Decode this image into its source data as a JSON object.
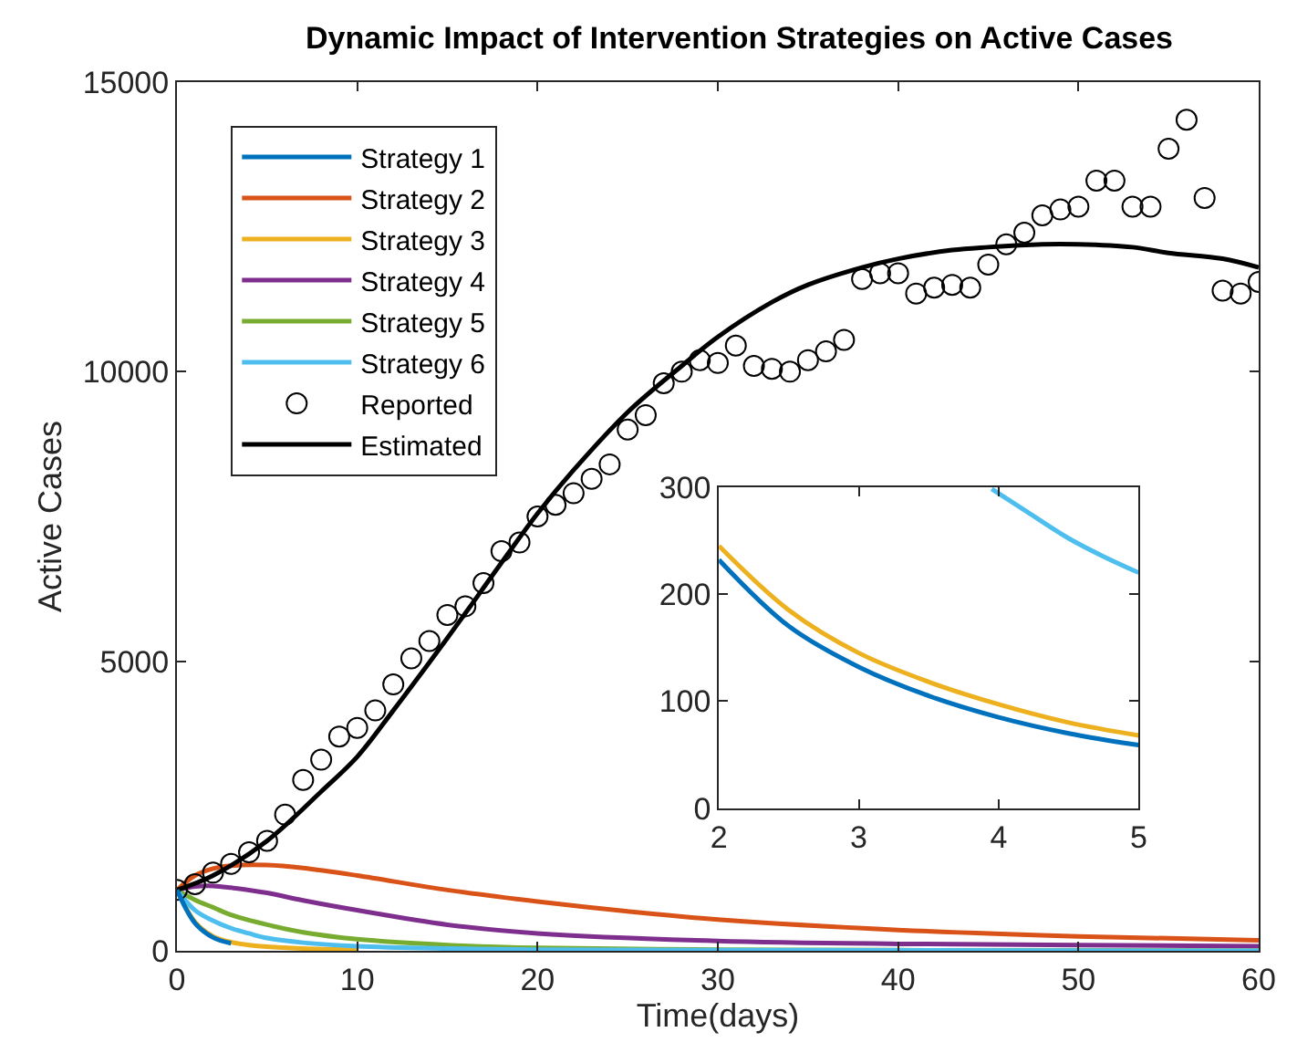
{
  "chart_data": [
    {
      "type": "line",
      "title": "Dynamic Impact of Intervention Strategies on Active Cases",
      "xlabel": "Time(days)",
      "ylabel": "Active Cases",
      "xlim": [
        0,
        60
      ],
      "xticks": [
        0,
        10,
        20,
        30,
        40,
        50,
        60
      ],
      "ylim": [
        0,
        15000
      ],
      "yticks": [
        0,
        5000,
        10000,
        15000
      ],
      "legend": "top left",
      "series": [
        {
          "name": "Strategy 1",
          "color": "#0072bd",
          "x": [
            0,
            1,
            2,
            3
          ],
          "values": [
            1050,
            480,
            230,
            130
          ]
        },
        {
          "name": "Strategy 2",
          "color": "#d95319",
          "x": [
            0,
            1,
            2,
            3,
            5,
            7,
            10,
            15,
            20,
            25,
            30,
            40,
            50,
            60
          ],
          "values": [
            1050,
            1300,
            1420,
            1470,
            1480,
            1430,
            1300,
            1050,
            850,
            680,
            540,
            360,
            250,
            180
          ]
        },
        {
          "name": "Strategy 3",
          "color": "#edb120",
          "x": [
            0,
            1,
            2,
            3,
            4,
            5,
            7,
            10
          ],
          "values": [
            1050,
            500,
            250,
            150,
            100,
            70,
            40,
            20
          ]
        },
        {
          "name": "Strategy 4",
          "color": "#7e2f8e",
          "x": [
            0,
            1,
            2,
            3,
            5,
            7,
            10,
            15,
            20,
            30,
            40,
            50,
            60
          ],
          "values": [
            1050,
            1110,
            1120,
            1090,
            1000,
            870,
            700,
            450,
            300,
            170,
            120,
            100,
            80
          ]
        },
        {
          "name": "Strategy 5",
          "color": "#77ac30",
          "x": [
            0,
            1,
            2,
            3,
            5,
            7,
            10,
            15,
            20,
            30,
            40,
            60
          ],
          "values": [
            1050,
            880,
            750,
            620,
            450,
            320,
            200,
            100,
            50,
            20,
            10,
            0
          ]
        },
        {
          "name": "Strategy 6",
          "color": "#4dbeee",
          "x": [
            0,
            1,
            2,
            3,
            4,
            5,
            7,
            10,
            15,
            20,
            30,
            60
          ],
          "values": [
            1050,
            700,
            520,
            390,
            300,
            220,
            140,
            80,
            40,
            20,
            10,
            0
          ]
        },
        {
          "name": "Reported",
          "type": "scatter",
          "marker": "circle",
          "color": "#000000",
          "x": [
            0,
            1,
            2,
            3,
            4,
            5,
            6,
            7,
            8,
            9,
            10,
            11,
            12,
            13,
            14,
            15,
            16,
            17,
            18,
            19,
            20,
            21,
            22,
            23,
            24,
            25,
            26,
            27,
            28,
            29,
            30,
            31,
            32,
            33,
            34,
            35,
            36,
            37,
            38,
            39,
            40,
            41,
            42,
            43,
            44,
            45,
            46,
            47,
            48,
            49,
            50,
            51,
            52,
            53,
            54,
            55,
            56,
            57,
            58,
            59,
            60
          ],
          "values": [
            1050,
            1150,
            1350,
            1500,
            1700,
            1900,
            2350,
            2950,
            3300,
            3700,
            3850,
            4150,
            4600,
            5050,
            5350,
            5800,
            5950,
            6350,
            6900,
            7050,
            7500,
            7700,
            7900,
            8150,
            8400,
            9000,
            9250,
            9800,
            10000,
            10200,
            10150,
            10450,
            10100,
            10050,
            10000,
            10200,
            10350,
            10550,
            11600,
            11700,
            11700,
            11350,
            11450,
            11500,
            11450,
            11850,
            12200,
            12400,
            12700,
            12800,
            12850,
            13300,
            13300,
            12850,
            12850,
            13850,
            14350,
            13000,
            11400,
            11350,
            11550
          ]
        },
        {
          "name": "Estimated",
          "color": "#000000",
          "x": [
            0,
            2,
            5,
            8,
            10,
            12,
            15,
            18,
            20,
            22,
            25,
            28,
            30,
            33,
            35,
            38,
            40,
            43,
            45,
            48,
            50,
            53,
            55,
            58,
            60
          ],
          "values": [
            1050,
            1300,
            1900,
            2750,
            3350,
            4150,
            5400,
            6700,
            7550,
            8300,
            9300,
            10100,
            10600,
            11200,
            11500,
            11800,
            11950,
            12100,
            12150,
            12200,
            12200,
            12150,
            12050,
            11950,
            11800
          ]
        }
      ]
    },
    {
      "type": "line",
      "xlim": [
        2,
        5
      ],
      "xticks": [
        2,
        3,
        4,
        5
      ],
      "ylim": [
        0,
        300
      ],
      "yticks": [
        0,
        100,
        200,
        300
      ],
      "legend": false,
      "series": [
        {
          "color": "#0072bd",
          "x": [
            2,
            2.5,
            3,
            3.5,
            4,
            4.5,
            5
          ],
          "values": [
            232,
            170,
            132,
            105,
            85,
            70,
            59
          ]
        },
        {
          "color": "#edb120",
          "x": [
            2,
            2.5,
            3,
            3.5,
            4,
            4.5,
            5
          ],
          "values": [
            245,
            185,
            145,
            118,
            97,
            80,
            68
          ]
        },
        {
          "color": "#4dbeee",
          "x": [
            3.95,
            4.2,
            4.5,
            4.75,
            5
          ],
          "values": [
            298,
            277,
            252,
            235,
            220
          ]
        }
      ]
    }
  ]
}
